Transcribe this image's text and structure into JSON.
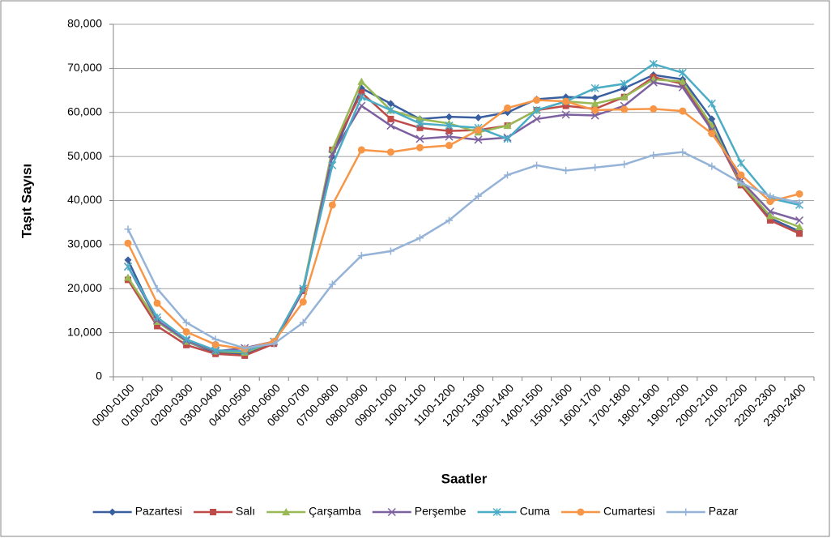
{
  "chart_data": {
    "type": "line",
    "y_label": "Taşıt Sayısı",
    "x_label": "Saatler",
    "categories": [
      "0000-0100",
      "0100-0200",
      "0200-0300",
      "0300-0400",
      "0400-0500",
      "0500-0600",
      "0600-0700",
      "0700-0800",
      "0800-0900",
      "0900-1000",
      "1000-1100",
      "1100-1200",
      "1200-1300",
      "1300-1400",
      "1400-1500",
      "1500-1600",
      "1600-1700",
      "1700-1800",
      "1800-1900",
      "1900-2000",
      "2000-2100",
      "2100-2200",
      "2200-2300",
      "2300-2400"
    ],
    "ylim": [
      0,
      80000
    ],
    "yticks": [
      0,
      {
        "value": 10000,
        "label": "10,000"
      },
      {
        "value": 20000,
        "label": "20,000"
      },
      {
        "value": 30000,
        "label": "30,000"
      },
      {
        "value": 40000,
        "label": "40,000"
      },
      {
        "value": 50000,
        "label": "50,000"
      },
      {
        "value": 60000,
        "label": "60,000"
      },
      {
        "value": 70000,
        "label": "70,000"
      },
      {
        "value": 80000,
        "label": "80,000"
      }
    ],
    "grid": true,
    "legend": "bottom",
    "series": [
      {
        "name": "Pazartesi",
        "color": "#3a5fa0",
        "marker": "diamond",
        "values": [
          26500,
          12500,
          8000,
          5500,
          5200,
          8000,
          20000,
          50000,
          65500,
          62000,
          58500,
          59000,
          58800,
          60000,
          63000,
          63500,
          63300,
          65500,
          68500,
          67500,
          58500,
          44000,
          36000,
          33000
        ]
      },
      {
        "name": "Salı",
        "color": "#be4b48",
        "marker": "square",
        "values": [
          22000,
          11500,
          7200,
          5200,
          4800,
          7500,
          19500,
          51500,
          64500,
          58500,
          56500,
          55800,
          56000,
          57000,
          60500,
          61500,
          60800,
          63500,
          68000,
          66500,
          56500,
          43500,
          35500,
          32500
        ]
      },
      {
        "name": "Çarşamba",
        "color": "#98b954",
        "marker": "triangle",
        "values": [
          22500,
          12500,
          8000,
          5800,
          5500,
          8000,
          20000,
          51500,
          67000,
          60500,
          58500,
          57500,
          55500,
          57000,
          60500,
          62500,
          62000,
          63500,
          67500,
          67000,
          57000,
          44000,
          36500,
          34000
        ]
      },
      {
        "name": "Perşembe",
        "color": "#7d60a0",
        "marker": "x",
        "values": [
          25000,
          12800,
          8200,
          5800,
          6500,
          8000,
          19500,
          50500,
          61500,
          57000,
          54000,
          54500,
          53800,
          54300,
          58500,
          59500,
          59300,
          61500,
          66800,
          65700,
          56000,
          44500,
          37500,
          35500
        ]
      },
      {
        "name": "Cuma",
        "color": "#4bacc6",
        "marker": "star",
        "values": [
          25000,
          13500,
          8500,
          6000,
          5800,
          8000,
          20000,
          48000,
          63500,
          60500,
          57500,
          57000,
          56500,
          54000,
          60500,
          62500,
          65500,
          66500,
          71000,
          69000,
          62000,
          48500,
          40500,
          39000
        ]
      },
      {
        "name": "Cumartesi",
        "color": "#f79646",
        "marker": "circle",
        "values": [
          30300,
          16700,
          10200,
          7300,
          6300,
          8000,
          17000,
          39000,
          51500,
          51000,
          52000,
          52500,
          56000,
          61000,
          62800,
          62500,
          60500,
          60700,
          60800,
          60300,
          55200,
          45800,
          39800,
          41500
        ]
      },
      {
        "name": "Pazar",
        "color": "#95b3d7",
        "marker": "plus",
        "values": [
          33500,
          20000,
          12300,
          8500,
          6500,
          7500,
          12300,
          21000,
          27500,
          28500,
          31500,
          35500,
          41000,
          45800,
          48000,
          46800,
          47500,
          48200,
          50300,
          51000,
          47800,
          44000,
          41000,
          39500
        ]
      }
    ]
  }
}
